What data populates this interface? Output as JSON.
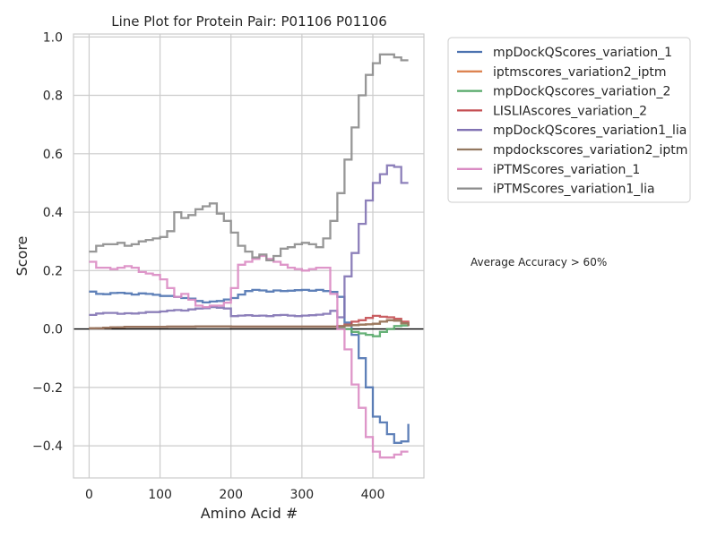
{
  "chart_data": {
    "type": "line",
    "title": "Line Plot for Protein Pair: P01106 P01106",
    "xlabel": "Amino Acid #",
    "ylabel": "Score",
    "xlim": [
      -22,
      472
    ],
    "ylim": [
      -0.51,
      1.01
    ],
    "xticks": [
      0,
      100,
      200,
      300,
      400
    ],
    "xtick_labels": [
      "0",
      "100",
      "200",
      "300",
      "400"
    ],
    "yticks": [
      -0.4,
      -0.2,
      0.0,
      0.2,
      0.4,
      0.6,
      0.8,
      1.0
    ],
    "ytick_labels": [
      "−0.4",
      "−0.2",
      "0.0",
      "0.2",
      "0.4",
      "0.6",
      "0.8",
      "1.0"
    ],
    "grid": true,
    "legend_position": "outside-right",
    "annotation": "Average Accuracy > 60%",
    "x": [
      0,
      10,
      20,
      30,
      40,
      50,
      60,
      70,
      80,
      90,
      100,
      110,
      120,
      130,
      140,
      150,
      160,
      170,
      180,
      190,
      200,
      210,
      220,
      230,
      240,
      250,
      260,
      270,
      280,
      290,
      300,
      310,
      320,
      330,
      340,
      350,
      360,
      370,
      380,
      390,
      400,
      410,
      420,
      430,
      440,
      450
    ],
    "series": [
      {
        "name": "mpDockQScores_variation_1",
        "color": "#4c72b0",
        "values": [
          0.128,
          0.12,
          0.119,
          0.123,
          0.124,
          0.122,
          0.118,
          0.122,
          0.12,
          0.117,
          0.113,
          0.113,
          0.11,
          0.106,
          0.104,
          0.096,
          0.091,
          0.094,
          0.096,
          0.101,
          0.106,
          0.118,
          0.13,
          0.134,
          0.132,
          0.128,
          0.132,
          0.13,
          0.131,
          0.133,
          0.134,
          0.131,
          0.134,
          0.13,
          0.127,
          0.11,
          0.022,
          -0.02,
          -0.1,
          -0.2,
          -0.3,
          -0.32,
          -0.36,
          -0.39,
          -0.385,
          -0.325
        ]
      },
      {
        "name": "iptmscores_variation2_iptm",
        "color": "#dd8452",
        "values": [
          0.002,
          0.003,
          0.004,
          0.005,
          0.006,
          0.007,
          0.007,
          0.007,
          0.007,
          0.007,
          0.007,
          0.008,
          0.008,
          0.008,
          0.008,
          0.009,
          0.009,
          0.009,
          0.009,
          0.009,
          0.008,
          0.008,
          0.008,
          0.008,
          0.008,
          0.008,
          0.008,
          0.008,
          0.008,
          0.008,
          0.008,
          0.008,
          0.008,
          0.008,
          0.008,
          0.009,
          0.012,
          0.013,
          0.015,
          0.016,
          0.018,
          0.025,
          0.03,
          0.028,
          0.02,
          0.01
        ]
      },
      {
        "name": "mpDockQscores_variation_2",
        "color": "#55a868",
        "values": [
          0.002,
          0.003,
          0.004,
          0.005,
          0.006,
          0.007,
          0.007,
          0.007,
          0.007,
          0.007,
          0.007,
          0.008,
          0.008,
          0.008,
          0.008,
          0.009,
          0.009,
          0.009,
          0.009,
          0.009,
          0.008,
          0.008,
          0.008,
          0.008,
          0.008,
          0.008,
          0.008,
          0.008,
          0.008,
          0.008,
          0.008,
          0.008,
          0.008,
          0.008,
          0.008,
          0.005,
          0.0,
          -0.01,
          -0.015,
          -0.02,
          -0.025,
          -0.01,
          0.0,
          0.01,
          0.012,
          0.01
        ]
      },
      {
        "name": "LISLIAscores_variation_2",
        "color": "#c44e52",
        "values": [
          0.002,
          0.003,
          0.004,
          0.005,
          0.006,
          0.007,
          0.007,
          0.007,
          0.007,
          0.007,
          0.007,
          0.008,
          0.008,
          0.008,
          0.008,
          0.009,
          0.009,
          0.009,
          0.009,
          0.009,
          0.008,
          0.008,
          0.008,
          0.008,
          0.008,
          0.008,
          0.008,
          0.008,
          0.008,
          0.008,
          0.008,
          0.008,
          0.008,
          0.008,
          0.008,
          0.01,
          0.015,
          0.025,
          0.03,
          0.038,
          0.045,
          0.042,
          0.04,
          0.035,
          0.025,
          0.012
        ]
      },
      {
        "name": "mpDockQScores_variation1_lia",
        "color": "#8172b3",
        "values": [
          0.048,
          0.053,
          0.055,
          0.055,
          0.052,
          0.054,
          0.053,
          0.055,
          0.058,
          0.058,
          0.06,
          0.063,
          0.065,
          0.063,
          0.067,
          0.07,
          0.071,
          0.075,
          0.073,
          0.07,
          0.044,
          0.046,
          0.047,
          0.045,
          0.046,
          0.044,
          0.047,
          0.048,
          0.046,
          0.044,
          0.046,
          0.047,
          0.049,
          0.052,
          0.062,
          0.04,
          0.18,
          0.26,
          0.36,
          0.44,
          0.5,
          0.53,
          0.56,
          0.555,
          0.5,
          0.5
        ]
      },
      {
        "name": "mpdockscores_variation2_iptm",
        "color": "#937860",
        "values": [
          0.002,
          0.003,
          0.004,
          0.005,
          0.006,
          0.007,
          0.007,
          0.007,
          0.007,
          0.007,
          0.007,
          0.008,
          0.008,
          0.008,
          0.008,
          0.009,
          0.009,
          0.009,
          0.009,
          0.009,
          0.008,
          0.008,
          0.008,
          0.008,
          0.008,
          0.008,
          0.008,
          0.008,
          0.008,
          0.008,
          0.008,
          0.008,
          0.008,
          0.008,
          0.008,
          0.009,
          0.012,
          0.013,
          0.015,
          0.016,
          0.018,
          0.025,
          0.03,
          0.028,
          0.02,
          0.01
        ]
      },
      {
        "name": "iPTMScores_variation_1",
        "color": "#da8bc3",
        "values": [
          0.23,
          0.21,
          0.21,
          0.205,
          0.21,
          0.215,
          0.21,
          0.195,
          0.19,
          0.185,
          0.17,
          0.14,
          0.11,
          0.12,
          0.1,
          0.08,
          0.075,
          0.08,
          0.08,
          0.09,
          0.14,
          0.22,
          0.23,
          0.24,
          0.25,
          0.24,
          0.23,
          0.22,
          0.21,
          0.205,
          0.2,
          0.205,
          0.21,
          0.21,
          0.12,
          0.0,
          -0.07,
          -0.19,
          -0.27,
          -0.37,
          -0.42,
          -0.44,
          -0.44,
          -0.43,
          -0.42,
          -0.42
        ]
      },
      {
        "name": "iPTMScores_variation1_lia",
        "color": "#8c8c8c",
        "values": [
          0.265,
          0.285,
          0.29,
          0.29,
          0.295,
          0.285,
          0.29,
          0.3,
          0.305,
          0.31,
          0.315,
          0.335,
          0.4,
          0.38,
          0.39,
          0.41,
          0.42,
          0.43,
          0.395,
          0.37,
          0.33,
          0.285,
          0.265,
          0.245,
          0.255,
          0.235,
          0.25,
          0.275,
          0.28,
          0.29,
          0.295,
          0.29,
          0.28,
          0.31,
          0.37,
          0.465,
          0.58,
          0.69,
          0.8,
          0.87,
          0.91,
          0.94,
          0.94,
          0.93,
          0.92,
          0.92
        ]
      }
    ]
  }
}
